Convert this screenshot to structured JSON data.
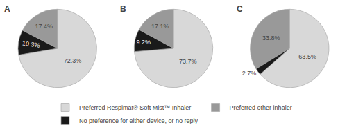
{
  "chart_data": [
    {
      "type": "pie",
      "title": "A",
      "categories": [
        "Preferred Respimat® Soft Mist™ Inhaler",
        "Preferred other inhaler",
        "No preference for either device, or no reply"
      ],
      "values": [
        72.3,
        17.4,
        10.3
      ],
      "value_labels": [
        "72.3%",
        "17.4%",
        "10.3%"
      ],
      "colors": [
        "#d8d8d8",
        "#999999",
        "#1a1a1a"
      ],
      "data_labels": true,
      "legend": "bottom"
    },
    {
      "type": "pie",
      "title": "B",
      "categories": [
        "Preferred Respimat® Soft Mist™ Inhaler",
        "Preferred other inhaler",
        "No preference for either device, or no reply"
      ],
      "values": [
        73.7,
        17.1,
        9.2
      ],
      "value_labels": [
        "73.7%",
        "17.1%",
        "9.2%"
      ],
      "colors": [
        "#d8d8d8",
        "#999999",
        "#1a1a1a"
      ],
      "data_labels": true,
      "legend": "bottom"
    },
    {
      "type": "pie",
      "title": "C",
      "categories": [
        "Preferred Respimat® Soft Mist™ Inhaler",
        "Preferred other inhaler",
        "No preference for either device, or no reply"
      ],
      "values": [
        63.5,
        33.8,
        2.7
      ],
      "value_labels": [
        "63.5%",
        "33.8%",
        "2.7%"
      ],
      "colors": [
        "#d8d8d8",
        "#999999",
        "#1a1a1a"
      ],
      "data_labels": true,
      "legend": "bottom"
    }
  ]
}
